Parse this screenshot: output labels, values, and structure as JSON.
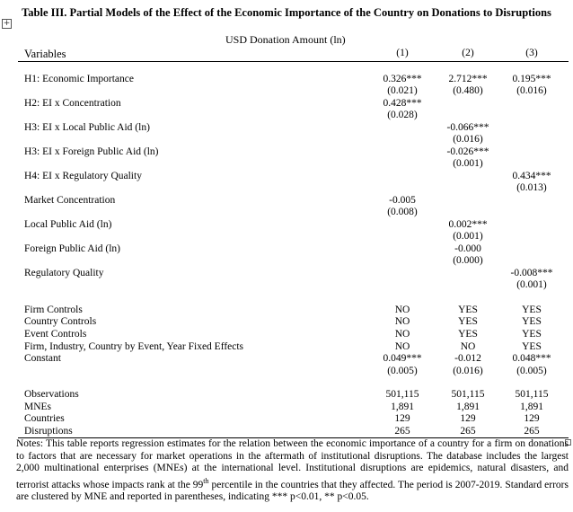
{
  "title": "Table III. Partial Models of the Effect of the Economic Importance of the Country on Donations to Disruptions",
  "dependent_variable": "USD Donation Amount (ln)",
  "header": {
    "variables": "Variables",
    "columns": [
      "(1)",
      "(2)",
      "(3)"
    ]
  },
  "rows": [
    {
      "label": "H1: Economic Importance",
      "bold": true,
      "coef": [
        "0.326***",
        "2.712***",
        "0.195***"
      ],
      "se": [
        "(0.021)",
        "(0.480)",
        "(0.016)"
      ]
    },
    {
      "label": "H2: EI x Concentration",
      "bold": true,
      "coef": [
        "0.428***",
        "",
        ""
      ],
      "se": [
        "(0.028)",
        "",
        ""
      ]
    },
    {
      "label": "H3: EI x Local Public Aid (ln)",
      "bold": true,
      "coef": [
        "",
        "-0.066***",
        ""
      ],
      "se": [
        "",
        "(0.016)",
        ""
      ]
    },
    {
      "label": "H3: EI x Foreign Public Aid (ln)",
      "bold": true,
      "coef": [
        "",
        "-0.026***",
        ""
      ],
      "se": [
        "",
        "(0.001)",
        ""
      ]
    },
    {
      "label": "H4: EI x Regulatory Quality",
      "bold": true,
      "coef": [
        "",
        "",
        "0.434***"
      ],
      "se": [
        "",
        "",
        "(0.013)"
      ]
    },
    {
      "label": "Market Concentration",
      "bold": false,
      "coef": [
        "-0.005",
        "",
        ""
      ],
      "se": [
        "(0.008)",
        "",
        ""
      ]
    },
    {
      "label": "Local Public Aid (ln)",
      "bold": false,
      "coef": [
        "",
        "0.002***",
        ""
      ],
      "se": [
        "",
        "(0.001)",
        ""
      ]
    },
    {
      "label": "Foreign Public Aid (ln)",
      "bold": false,
      "coef": [
        "",
        "-0.000",
        ""
      ],
      "se": [
        "",
        "(0.000)",
        ""
      ]
    },
    {
      "label": "Regulatory Quality",
      "bold": false,
      "coef": [
        "",
        "",
        "-0.008***"
      ],
      "se": [
        "",
        "",
        "(0.001)"
      ]
    }
  ],
  "controls": [
    {
      "label": "Firm Controls",
      "values": [
        "NO",
        "YES",
        "YES"
      ]
    },
    {
      "label": "Country Controls",
      "values": [
        "NO",
        "YES",
        "YES"
      ]
    },
    {
      "label": "Event Controls",
      "values": [
        "NO",
        "YES",
        "YES"
      ]
    },
    {
      "label": "Firm, Industry, Country by Event, Year Fixed Effects",
      "values": [
        "NO",
        "NO",
        "YES"
      ]
    },
    {
      "label": "Constant",
      "values": [
        "0.049***",
        "-0.012",
        "0.048***"
      ],
      "se": [
        "(0.005)",
        "(0.016)",
        "(0.005)"
      ]
    }
  ],
  "stats": [
    {
      "label": "Observations",
      "values": [
        "501,115",
        "501,115",
        "501,115"
      ]
    },
    {
      "label": "MNEs",
      "values": [
        "1,891",
        "1,891",
        "1,891"
      ]
    },
    {
      "label": "Countries",
      "values": [
        "129",
        "129",
        "129"
      ]
    },
    {
      "label": "Disruptions",
      "values": [
        "265",
        "265",
        "265"
      ]
    }
  ],
  "notes": "Notes: This table reports regression estimates for the relation between the economic importance of a country for a firm on donations to factors that are necessary for market operations in the aftermath of institutional disruptions. The database includes the largest 2,000 multinational enterprises (MNEs) at the international level. Institutional disruptions are epidemics, natural disasters, and terrorist attacks whose impacts rank at the 99th percentile in the countries that they affected. The period is 2007-2019. Standard errors are clustered by MNE and reported in parentheses, indicating *** p<0.01, ** p<0.05."
}
